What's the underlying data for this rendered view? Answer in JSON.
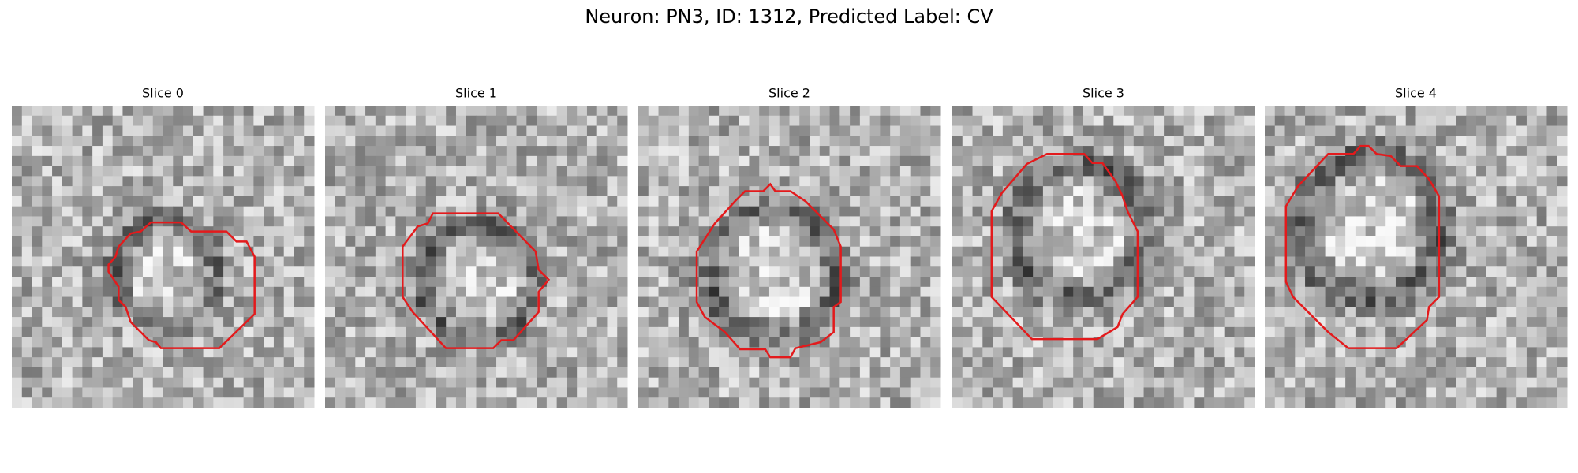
{
  "title": "Neuron: PN3, ID: 1312, Predicted Label: CV",
  "panels": [
    {
      "title": "Slice 0"
    },
    {
      "title": "Slice 1"
    },
    {
      "title": "Slice 2"
    },
    {
      "title": "Slice 3"
    },
    {
      "title": "Slice 4"
    }
  ]
}
